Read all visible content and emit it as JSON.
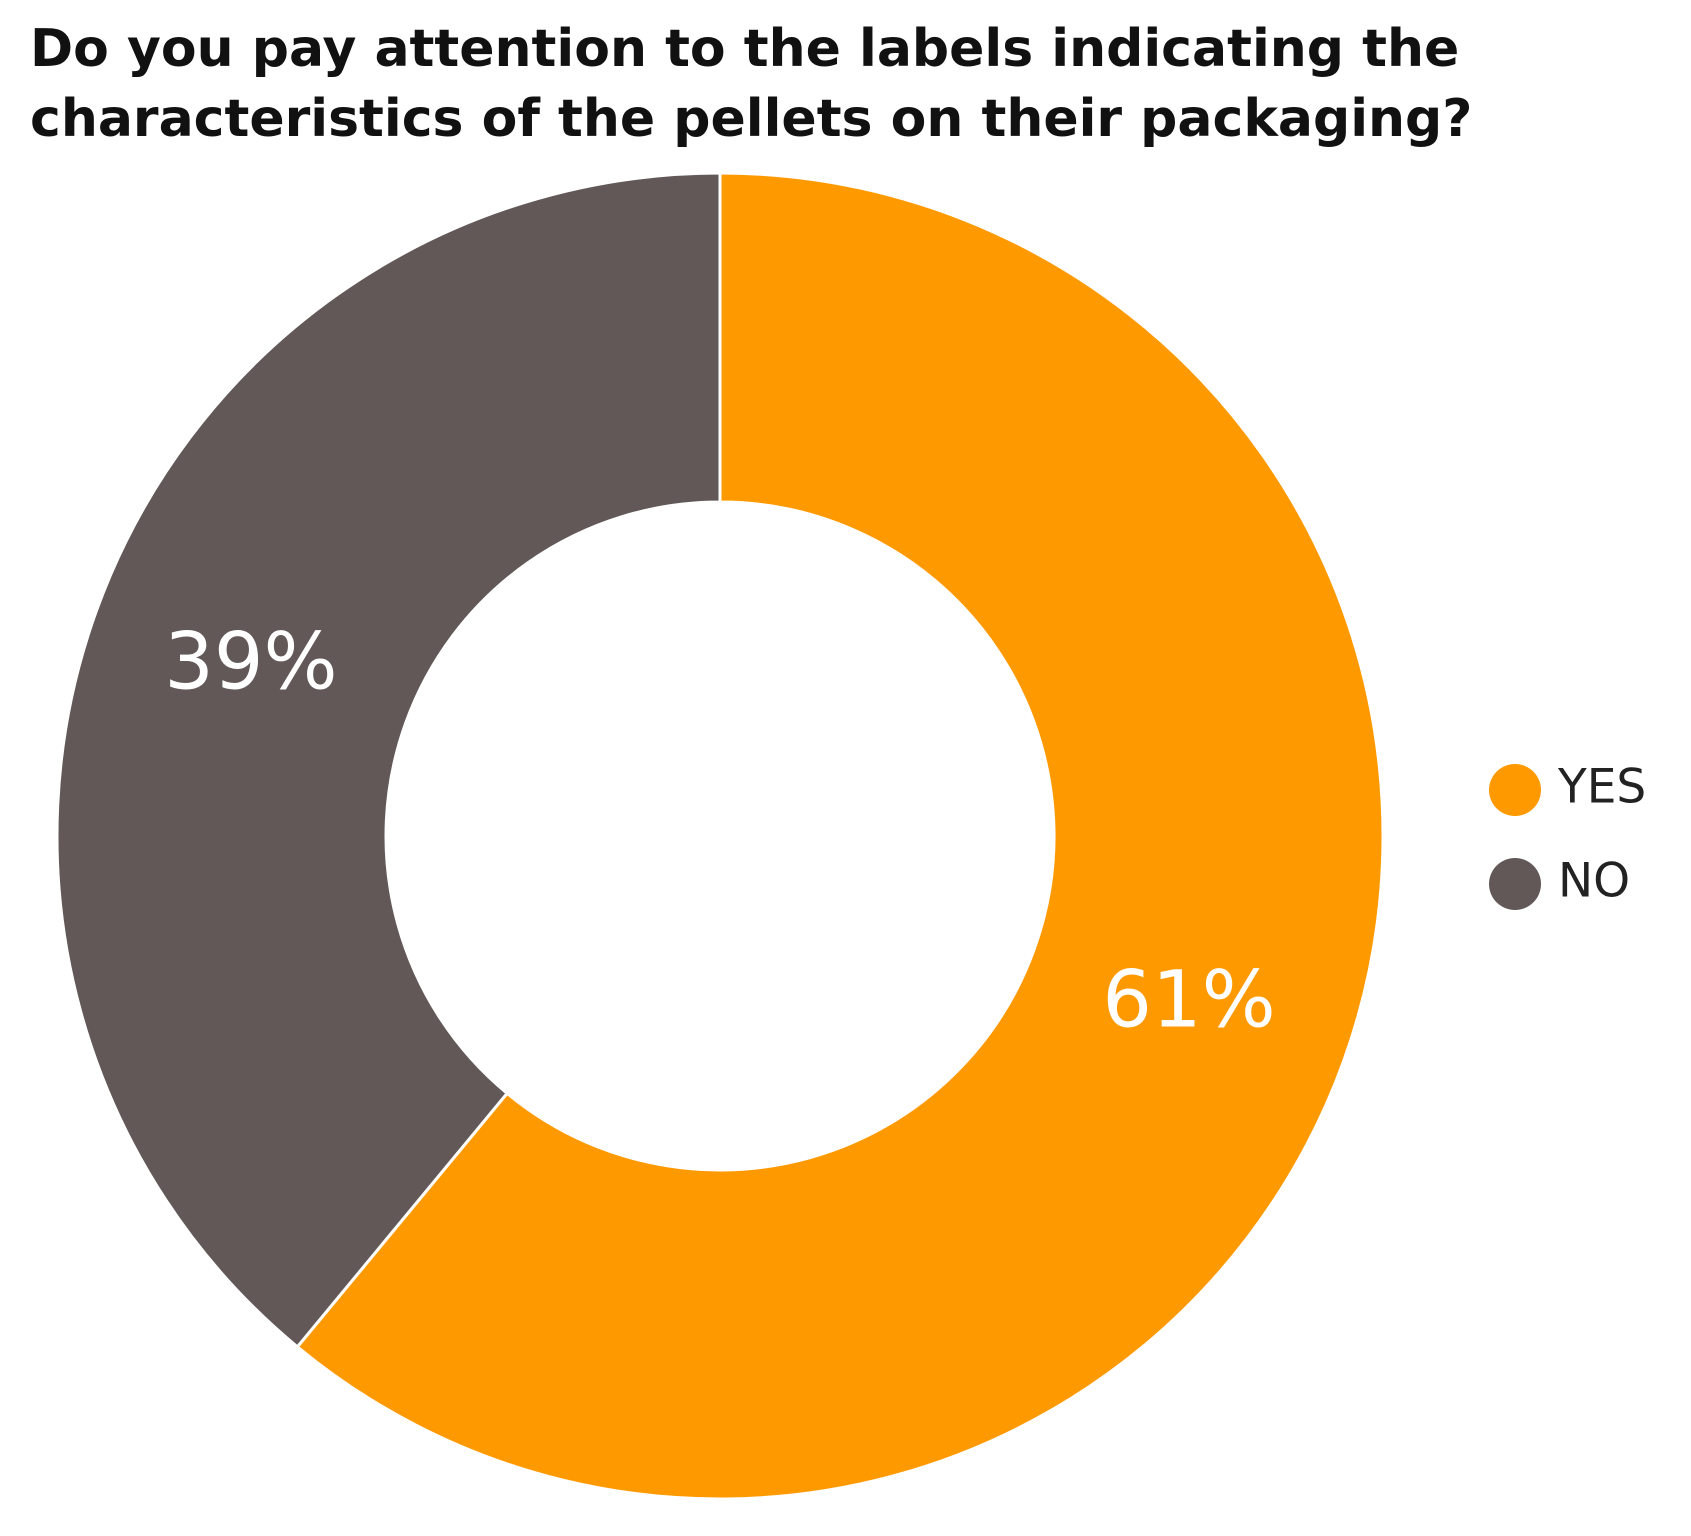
{
  "chart_data": {
    "type": "donut",
    "title": "Do you pay attention to the labels indicating the characteristics of the pellets on their packaging?",
    "categories": [
      "YES",
      "NO"
    ],
    "values": [
      61,
      39
    ],
    "value_labels": [
      "61%",
      "39%"
    ],
    "colors": [
      "#ff9900",
      "#625858"
    ],
    "legend": "right"
  }
}
